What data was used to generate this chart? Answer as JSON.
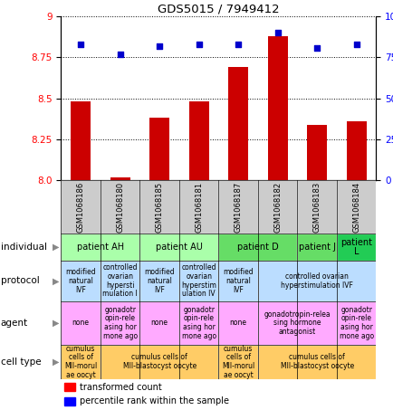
{
  "title": "GDS5015 / 7949412",
  "samples": [
    "GSM1068186",
    "GSM1068180",
    "GSM1068185",
    "GSM1068181",
    "GSM1068187",
    "GSM1068182",
    "GSM1068183",
    "GSM1068184"
  ],
  "red_values": [
    8.48,
    8.02,
    8.38,
    8.48,
    8.69,
    8.88,
    8.34,
    8.36
  ],
  "blue_values": [
    83,
    77,
    82,
    83,
    83,
    90,
    81,
    83
  ],
  "ylim_left": [
    8.0,
    9.0
  ],
  "ylim_right": [
    0,
    100
  ],
  "yticks_left": [
    8.0,
    8.25,
    8.5,
    8.75,
    9.0
  ],
  "yticks_right": [
    0,
    25,
    50,
    75,
    100
  ],
  "individual_row": {
    "groups": [
      {
        "text": "patient AH",
        "cols": [
          0,
          1
        ],
        "color": "#aaffaa"
      },
      {
        "text": "patient AU",
        "cols": [
          2,
          3
        ],
        "color": "#aaffaa"
      },
      {
        "text": "patient D",
        "cols": [
          4,
          5
        ],
        "color": "#66dd66"
      },
      {
        "text": "patient J",
        "cols": [
          6,
          6
        ],
        "color": "#66dd66"
      },
      {
        "text": "patient\nL",
        "cols": [
          7,
          7
        ],
        "color": "#22cc55"
      }
    ]
  },
  "protocol_row": {
    "groups": [
      {
        "text": "modified\nnatural\nIVF",
        "cols": [
          0,
          0
        ],
        "color": "#bbddff"
      },
      {
        "text": "controlled\novarian\nhypersti\nmulation I",
        "cols": [
          1,
          1
        ],
        "color": "#bbddff"
      },
      {
        "text": "modified\nnatural\nIVF",
        "cols": [
          2,
          2
        ],
        "color": "#bbddff"
      },
      {
        "text": "controlled\novarian\nhyperstim\nulation IV",
        "cols": [
          3,
          3
        ],
        "color": "#bbddff"
      },
      {
        "text": "modified\nnatural\nIVF",
        "cols": [
          4,
          4
        ],
        "color": "#bbddff"
      },
      {
        "text": "controlled ovarian\nhyperstimulation IVF",
        "cols": [
          5,
          7
        ],
        "color": "#bbddff"
      }
    ]
  },
  "agent_row": {
    "groups": [
      {
        "text": "none",
        "cols": [
          0,
          0
        ],
        "color": "#ffaaff"
      },
      {
        "text": "gonadotr\nopin-rele\nasing hor\nmone ago",
        "cols": [
          1,
          1
        ],
        "color": "#ffaaff"
      },
      {
        "text": "none",
        "cols": [
          2,
          2
        ],
        "color": "#ffaaff"
      },
      {
        "text": "gonadotr\nopin-rele\nasing hor\nmone ago",
        "cols": [
          3,
          3
        ],
        "color": "#ffaaff"
      },
      {
        "text": "none",
        "cols": [
          4,
          4
        ],
        "color": "#ffaaff"
      },
      {
        "text": "gonadotropin-relea\nsing hormone\nantagonist",
        "cols": [
          5,
          6
        ],
        "color": "#ffaaff"
      },
      {
        "text": "gonadotr\nopin-rele\nasing hor\nmone ago",
        "cols": [
          7,
          7
        ],
        "color": "#ffaaff"
      }
    ]
  },
  "celltype_row": {
    "groups": [
      {
        "text": "cumulus\ncells of\nMII-morul\nae oocyt",
        "cols": [
          0,
          0
        ],
        "color": "#ffcc66"
      },
      {
        "text": "cumulus cells of\nMII-blastocyst oocyte",
        "cols": [
          1,
          3
        ],
        "color": "#ffcc66"
      },
      {
        "text": "cumulus\ncells of\nMII-morul\nae oocyt",
        "cols": [
          4,
          4
        ],
        "color": "#ffcc66"
      },
      {
        "text": "cumulus cells of\nMII-blastocyst oocyte",
        "cols": [
          5,
          7
        ],
        "color": "#ffcc66"
      }
    ]
  },
  "bar_color": "#cc0000",
  "dot_color": "#0000cc",
  "sample_bg": "#cccccc",
  "row_labels": [
    "individual",
    "protocol",
    "agent",
    "cell type"
  ],
  "legend_red": "transformed count",
  "legend_blue": "percentile rank within the sample"
}
